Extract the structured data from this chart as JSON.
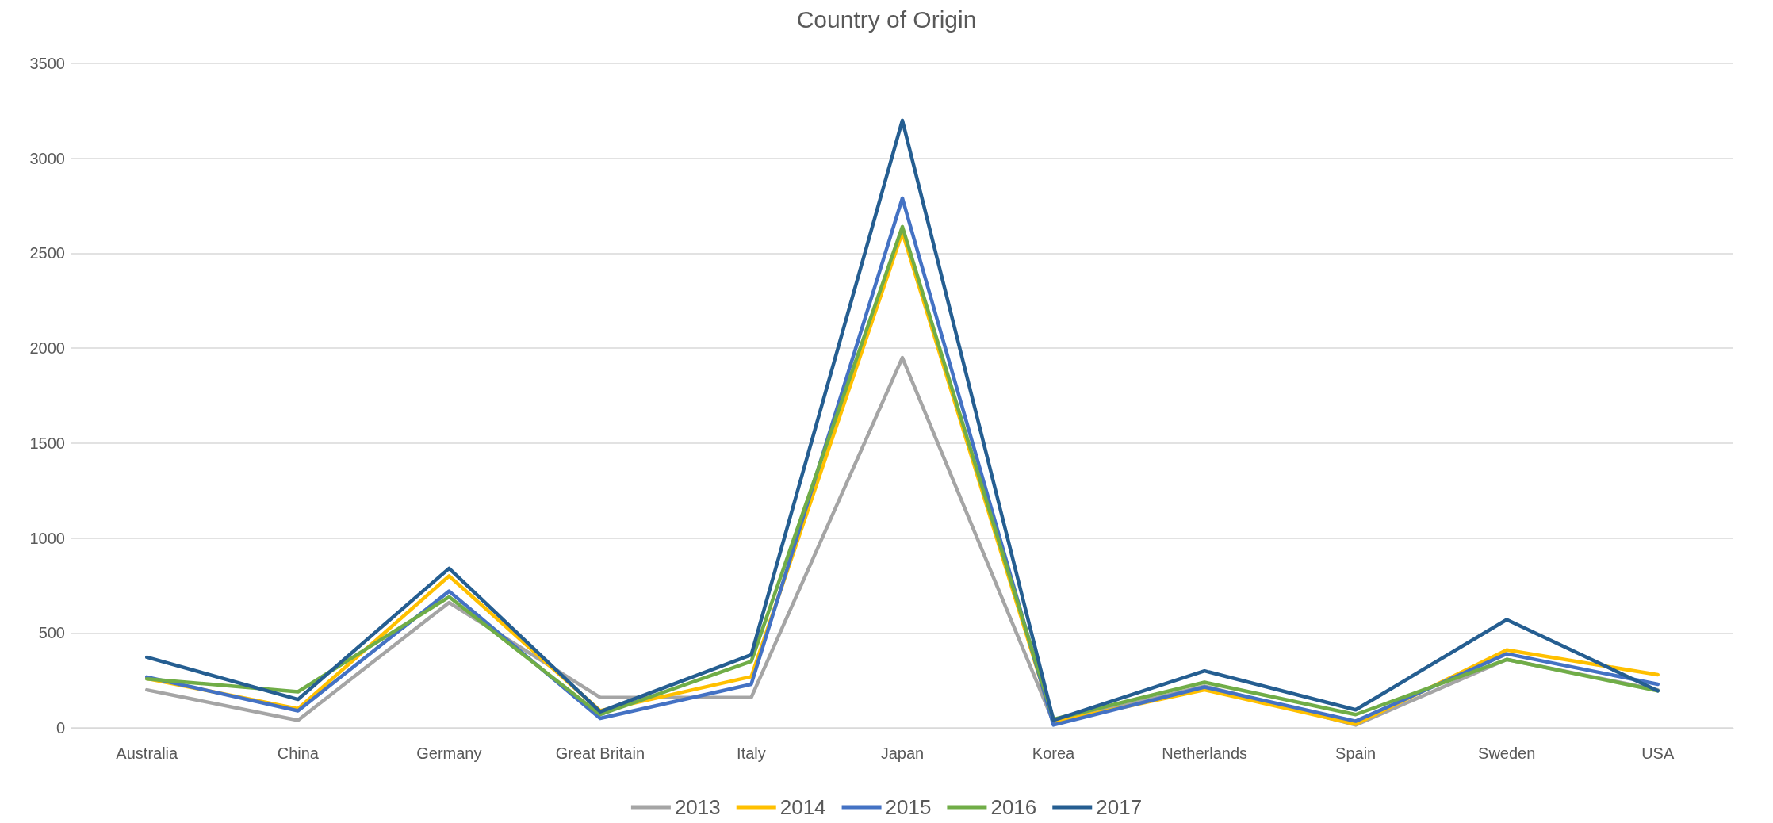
{
  "chart_data": {
    "type": "line",
    "title": "Country of Origin",
    "categories": [
      "Australia",
      "China",
      "Germany",
      "Great Britain",
      "Italy",
      "Japan",
      "Korea",
      "Netherlands",
      "Spain",
      "Sweden",
      "USA"
    ],
    "series": [
      {
        "name": "2013",
        "color": "#a5a5a5",
        "values": [
          200,
          40,
          660,
          160,
          160,
          1950,
          30,
          220,
          15,
          360,
          200
        ]
      },
      {
        "name": "2014",
        "color": "#ffc000",
        "values": [
          260,
          100,
          800,
          90,
          270,
          2610,
          30,
          200,
          20,
          410,
          280
        ]
      },
      {
        "name": "2015",
        "color": "#4472c4",
        "values": [
          268,
          90,
          720,
          50,
          230,
          2790,
          15,
          215,
          35,
          390,
          230
        ]
      },
      {
        "name": "2016",
        "color": "#70ad47",
        "values": [
          258,
          190,
          690,
          70,
          350,
          2640,
          45,
          240,
          70,
          360,
          195
        ]
      },
      {
        "name": "2017",
        "color": "#255e91",
        "values": [
          372,
          150,
          840,
          85,
          385,
          3200,
          40,
          300,
          95,
          570,
          195
        ]
      }
    ],
    "ylim": [
      0,
      3500
    ],
    "yticks": [
      0,
      500,
      1000,
      1500,
      2000,
      2500,
      3000,
      3500
    ],
    "grid": "y",
    "legend": "bottom",
    "marker": "none",
    "line_style": "solid"
  }
}
